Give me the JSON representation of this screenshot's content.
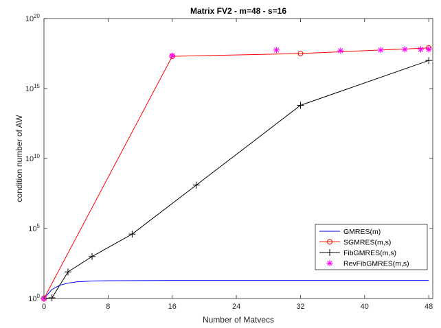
{
  "chart_data": {
    "type": "line",
    "title": "Matrix FV2 - m=48 - s=16",
    "xlabel": "Number of Matvecs",
    "ylabel": "condition number of AW",
    "xlim": [
      0,
      48.5
    ],
    "ylim_log10": [
      0,
      20
    ],
    "y_scale": "log",
    "grid": false,
    "legend_position": "lower-right",
    "x_ticks": [
      0,
      8,
      16,
      24,
      32,
      40,
      48
    ],
    "y_ticks": [
      {
        "base": "10",
        "exp": "0",
        "log10": 0
      },
      {
        "base": "10",
        "exp": "5",
        "log10": 5
      },
      {
        "base": "10",
        "exp": "10",
        "log10": 10
      },
      {
        "base": "10",
        "exp": "15",
        "log10": 15
      },
      {
        "base": "10",
        "exp": "20",
        "log10": 20
      }
    ],
    "series": [
      {
        "name": "GMRES(m)",
        "color": "#0000ff",
        "marker": "none",
        "x": [
          0,
          1,
          2,
          3,
          4,
          6,
          8,
          12,
          16,
          24,
          32,
          40,
          48
        ],
        "log10_y": [
          0,
          0.65,
          0.95,
          1.1,
          1.18,
          1.25,
          1.27,
          1.28,
          1.29,
          1.29,
          1.29,
          1.29,
          1.29
        ]
      },
      {
        "name": "SGMRES(m,s)",
        "color": "#ff0000",
        "marker": "circle",
        "x": [
          0,
          16,
          32,
          48
        ],
        "log10_y": [
          0,
          17.3,
          17.5,
          17.9
        ]
      },
      {
        "name": "FibGMRES(m,s)",
        "color": "#000000",
        "marker": "plus",
        "x": [
          0,
          1,
          3,
          6,
          11,
          19,
          32,
          48
        ],
        "log10_y": [
          0,
          0.05,
          1.9,
          3.0,
          4.6,
          8.1,
          13.8,
          17.0
        ]
      },
      {
        "name": "RevFibGMRES(m,s)",
        "color": "#ff00ff",
        "marker": "asterisk",
        "x": [
          0,
          16,
          29,
          37,
          42,
          45,
          47,
          48
        ],
        "log10_y": [
          0,
          17.35,
          17.75,
          17.7,
          17.75,
          17.8,
          17.8,
          17.8
        ]
      }
    ]
  }
}
